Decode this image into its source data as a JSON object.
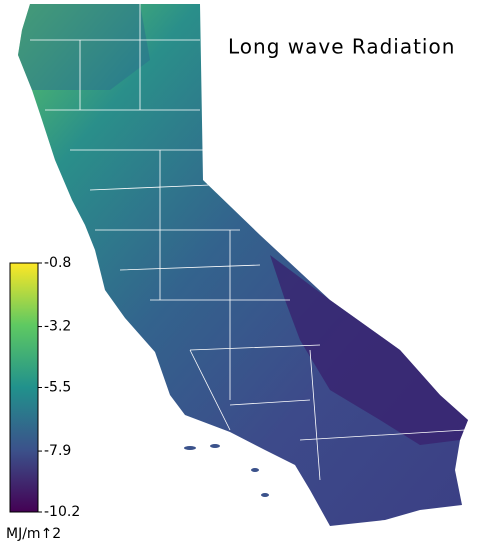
{
  "title": "Long wave Radiation",
  "colorbar": {
    "lim": [
      -10.2,
      -0.8
    ],
    "ticks": [
      -0.8,
      -3.2,
      -5.5,
      -7.9,
      -10.2
    ],
    "unit": "MJ/m↑2"
  }
}
